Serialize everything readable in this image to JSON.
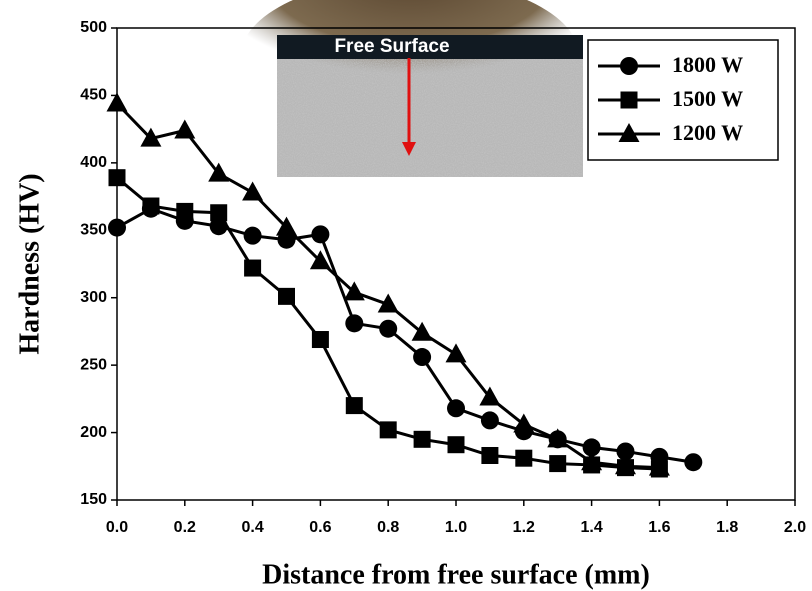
{
  "chart_data": {
    "type": "line",
    "xlabel": "Distance from free surface (mm)",
    "ylabel": "Hardness (HV)",
    "annotation": "Free Surface",
    "x": [
      0.0,
      0.1,
      0.2,
      0.3,
      0.4,
      0.5,
      0.6,
      0.7,
      0.8,
      0.9,
      1.0,
      1.1,
      1.2,
      1.3,
      1.4,
      1.5,
      1.6,
      1.7
    ],
    "series": [
      {
        "name": "1800 W",
        "color": "#000000",
        "marker": "circle",
        "values": [
          352,
          366,
          357,
          353,
          346,
          343,
          347,
          281,
          277,
          256,
          218,
          209,
          201,
          195,
          189,
          186,
          182,
          178
        ]
      },
      {
        "name": "1500 W",
        "color": "#000000",
        "marker": "square",
        "values": [
          389,
          368,
          364,
          363,
          322,
          301,
          269,
          220,
          202,
          195,
          191,
          183,
          181,
          177,
          176,
          174,
          173,
          null
        ]
      },
      {
        "name": "1200 W",
        "color": "#000000",
        "marker": "triangle",
        "values": [
          444,
          418,
          424,
          392,
          378,
          352,
          327,
          304,
          295,
          274,
          258,
          226,
          206,
          195,
          178,
          175,
          174,
          null
        ]
      }
    ],
    "xlim": [
      0,
      2
    ],
    "xticks": [
      {
        "value": 0,
        "label": "0.0"
      },
      {
        "value": 0.2,
        "label": "0.2"
      },
      {
        "value": 0.4,
        "label": "0.4"
      },
      {
        "value": 0.6,
        "label": "0.6"
      },
      {
        "value": 0.8,
        "label": "0.8"
      },
      {
        "value": 1,
        "label": "1.0"
      },
      {
        "value": 1.2,
        "label": "1.2"
      },
      {
        "value": 1.4,
        "label": "1.4"
      },
      {
        "value": 1.6,
        "label": "1.6"
      },
      {
        "value": 1.8,
        "label": "1.8"
      },
      {
        "value": 2,
        "label": "2.0"
      }
    ],
    "ylim": [
      150,
      500
    ],
    "yticks": [
      150,
      200,
      250,
      300,
      350,
      400,
      450,
      500
    ],
    "legend": "upper right"
  }
}
